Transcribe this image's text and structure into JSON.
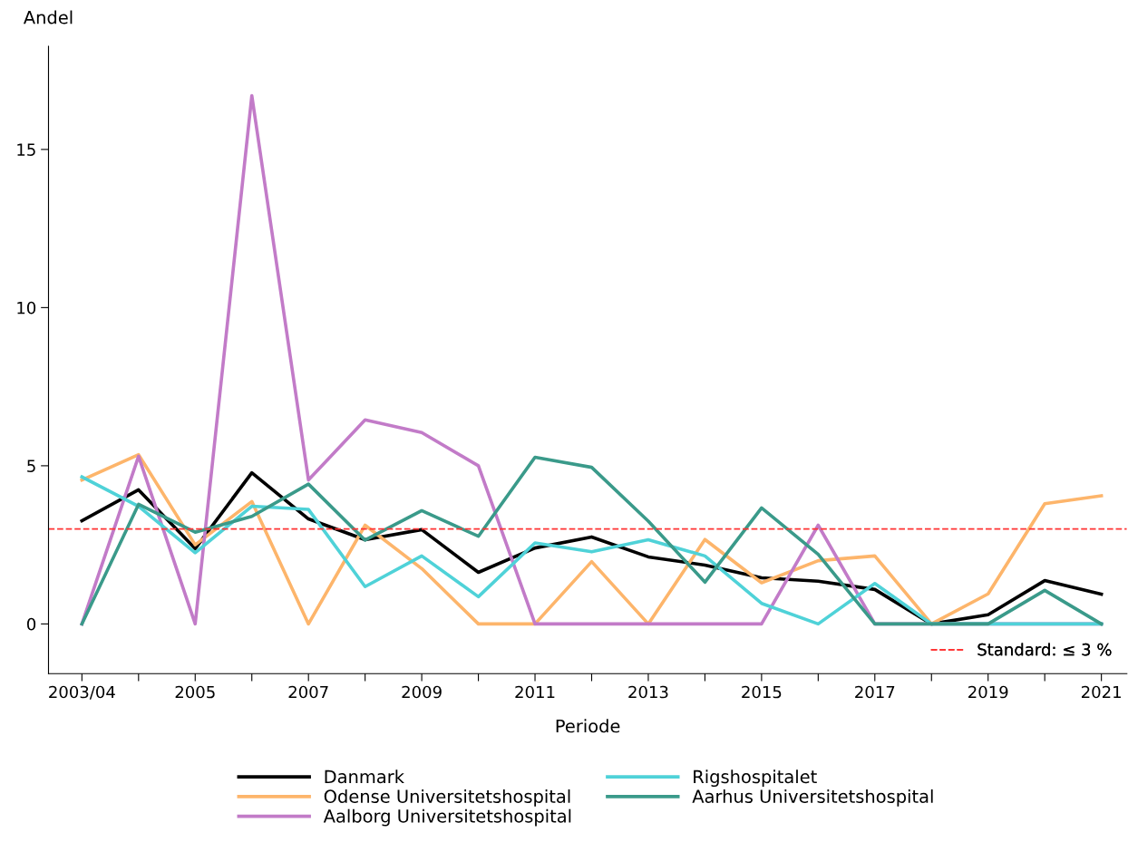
{
  "chart_data": {
    "type": "line",
    "xlabel": "Periode",
    "ylabel": "Andel",
    "categories": [
      "2003/04",
      null,
      "2005",
      null,
      "2007",
      null,
      "2009",
      null,
      "2011",
      null,
      "2013",
      null,
      "2015",
      null,
      "2017",
      null,
      "2019",
      null,
      "2021"
    ],
    "series": [
      {
        "name": "Danmark",
        "color": "#000000",
        "values": [
          3.26,
          4.24,
          2.38,
          4.78,
          3.32,
          2.66,
          2.98,
          1.63,
          2.4,
          2.75,
          2.12,
          1.86,
          1.46,
          1.35,
          1.09,
          0,
          0.29,
          1.37,
          0.94
        ]
      },
      {
        "name": "Odense Universitetshospital",
        "color": "#fdb56b",
        "values": [
          4.55,
          5.35,
          2.5,
          3.87,
          0,
          3.12,
          1.75,
          0,
          0,
          1.97,
          0,
          2.67,
          1.3,
          2.0,
          2.15,
          0,
          0.95,
          3.8,
          4.05
        ]
      },
      {
        "name": "Aalborg Universitetshospital",
        "color": "#c27bc8",
        "values": [
          0,
          5.3,
          0,
          16.7,
          4.55,
          6.45,
          6.05,
          5.0,
          0,
          0,
          0,
          0,
          0,
          3.12,
          0,
          0,
          0,
          0,
          0
        ]
      },
      {
        "name": "Rigshospitalet",
        "color": "#4fd2d8",
        "values": [
          4.65,
          3.72,
          2.25,
          3.72,
          3.62,
          1.18,
          2.15,
          0.86,
          2.56,
          2.28,
          2.66,
          2.15,
          0.65,
          0,
          1.28,
          0,
          0,
          0,
          0
        ]
      },
      {
        "name": "Aarhus Universitetshospital",
        "color": "#3a9a8a",
        "values": [
          0,
          3.78,
          2.9,
          3.4,
          4.42,
          2.65,
          3.58,
          2.77,
          5.27,
          4.95,
          3.25,
          1.32,
          3.67,
          2.2,
          0,
          0,
          0,
          1.06,
          0
        ]
      }
    ],
    "ylim": [
      -1.57,
      18.26
    ],
    "yticks": [
      0,
      5,
      10,
      15
    ],
    "ref_lines": [
      {
        "axis": "y",
        "value": 3,
        "label": "Standard: ≤ 3 %",
        "color": "#ff3333",
        "line_style": "dashed"
      }
    ],
    "legend": "bottom",
    "grid": false,
    "line_style": "solid",
    "marker": "none"
  }
}
